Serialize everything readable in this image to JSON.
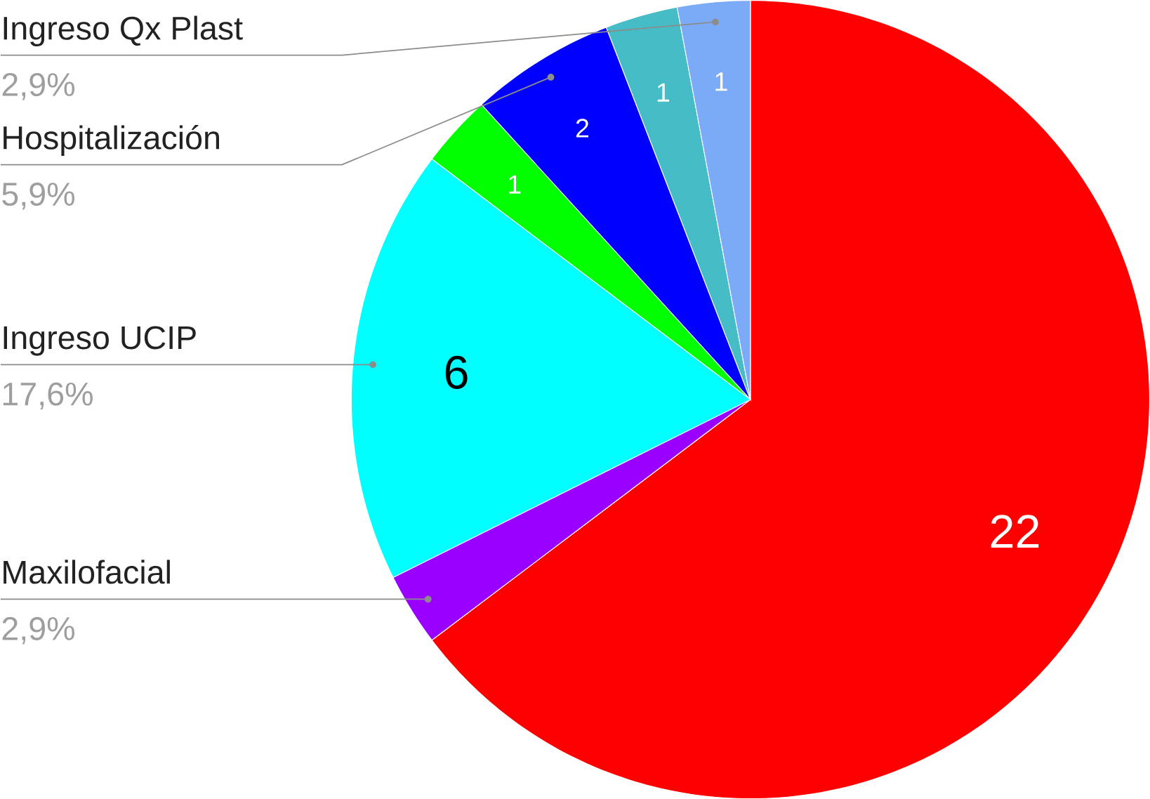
{
  "chart_data": {
    "type": "pie",
    "categories": [
      null,
      "Maxilofacial",
      "Ingreso UCIP",
      null,
      "Hospitalización",
      null,
      "Ingreso Qx Plast"
    ],
    "values": [
      22,
      1,
      6,
      1,
      2,
      1,
      1
    ],
    "value_labels": [
      "22",
      null,
      "6",
      "1",
      "2",
      "1",
      "1"
    ],
    "colors": [
      "#ff0000",
      "#9900ff",
      "#00ffff",
      "#00ff00",
      "#0000ff",
      "#46bdc6",
      "#7baaf7"
    ],
    "annotations": [
      {
        "text": "2,9%",
        "x": "Maxilofacial"
      },
      {
        "text": "17,6%",
        "x": "Ingreso UCIP"
      },
      {
        "text": "5,9%",
        "x": "Hospitalización"
      },
      {
        "text": "2,9%",
        "x": "Ingreso Qx Plast"
      }
    ]
  }
}
